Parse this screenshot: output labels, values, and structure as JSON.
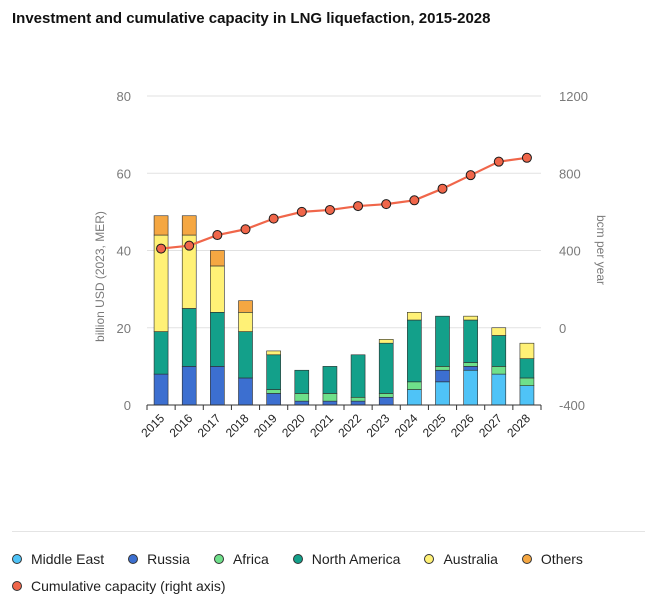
{
  "title": "Investment and cumulative capacity in LNG liquefaction, 2015-2028",
  "chart_data": {
    "type": "bar",
    "stacked": true,
    "categories": [
      "2015",
      "2016",
      "2017",
      "2018",
      "2019",
      "2020",
      "2021",
      "2022",
      "2023",
      "2024",
      "2025",
      "2026",
      "2027",
      "2028"
    ],
    "ylabel": "billion USD (2023, MER)",
    "y2label": "bcm per year",
    "ylim": [
      0,
      80
    ],
    "y2lim": [
      -400,
      1200
    ],
    "yticks": [
      "0",
      "20",
      "40",
      "60",
      "80"
    ],
    "y2ticks": [
      "-400",
      "0",
      "400",
      "800",
      "1200"
    ],
    "grid": true,
    "legend_position": "bottom",
    "series": [
      {
        "name": "Middle East",
        "color": "#4fc3f7",
        "values": [
          0,
          0,
          0,
          0,
          0,
          0,
          0,
          0,
          0,
          4,
          6,
          9,
          8,
          5
        ]
      },
      {
        "name": "Russia",
        "color": "#3c6fd0",
        "values": [
          8,
          10,
          10,
          7,
          3,
          1,
          1,
          1,
          2,
          0,
          3,
          1,
          0,
          0
        ]
      },
      {
        "name": "Africa",
        "color": "#6fe08a",
        "values": [
          0,
          0,
          0,
          0,
          1,
          2,
          2,
          1,
          1,
          2,
          1,
          1,
          2,
          2
        ]
      },
      {
        "name": "North America",
        "color": "#13a08a",
        "values": [
          11,
          15,
          14,
          12,
          9,
          6,
          7,
          11,
          13,
          16,
          13,
          11,
          8,
          5
        ]
      },
      {
        "name": "Australia",
        "color": "#fff176",
        "values": [
          25,
          19,
          12,
          5,
          1,
          0,
          0,
          0,
          1,
          2,
          0,
          1,
          2,
          4
        ]
      },
      {
        "name": "Others",
        "color": "#f5a742",
        "values": [
          5,
          5,
          4,
          3,
          0,
          0,
          0,
          0,
          0,
          0,
          0,
          0,
          0,
          0
        ]
      }
    ],
    "line": {
      "name": "Cumulative capacity (right axis)",
      "color": "#f0664a",
      "values": [
        410,
        425,
        480,
        510,
        565,
        600,
        610,
        630,
        640,
        660,
        720,
        790,
        860,
        880
      ]
    }
  },
  "legend": {
    "row1": [
      {
        "label": "Middle East",
        "color": "#4fc3f7"
      },
      {
        "label": "Russia",
        "color": "#3c6fd0"
      },
      {
        "label": "Africa",
        "color": "#6fe08a"
      },
      {
        "label": "North America",
        "color": "#13a08a"
      },
      {
        "label": "Australia",
        "color": "#fff176"
      },
      {
        "label": "Others",
        "color": "#f5a742"
      }
    ],
    "row2": [
      {
        "label": "Cumulative capacity (right axis)",
        "color": "#f0664a"
      }
    ]
  }
}
